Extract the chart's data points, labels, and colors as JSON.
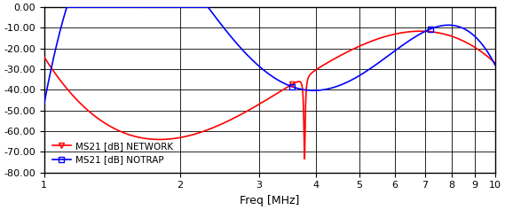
{
  "title": "",
  "xlabel": "Freq [MHz]",
  "ylabel": "",
  "xlim_log": [
    1,
    10
  ],
  "ylim": [
    -80,
    0
  ],
  "yticks": [
    0,
    -10,
    -20,
    -30,
    -40,
    -50,
    -60,
    -70,
    -80
  ],
  "ytick_labels": [
    "0.00",
    "-10.00",
    "-20.00",
    "-30.00",
    "-40.00",
    "-50.00",
    "-60.00",
    "-70.00",
    "-80.00"
  ],
  "xticks": [
    1,
    2,
    3,
    4,
    5,
    6,
    7,
    8,
    9,
    10
  ],
  "bg_color": "#ffffff",
  "plot_bg_color": "#ffffff",
  "grid_color": "#000000",
  "red_color": "#ff0000",
  "blue_color": "#0000ff",
  "legend_label_red": "MS21 [dB] NETWORK",
  "legend_label_blue": "MS21 [dB] NOTRAP",
  "red_marker_freq": 3.55,
  "blue_marker_freq": 3.55,
  "blue_marker2_freq": 7.2
}
